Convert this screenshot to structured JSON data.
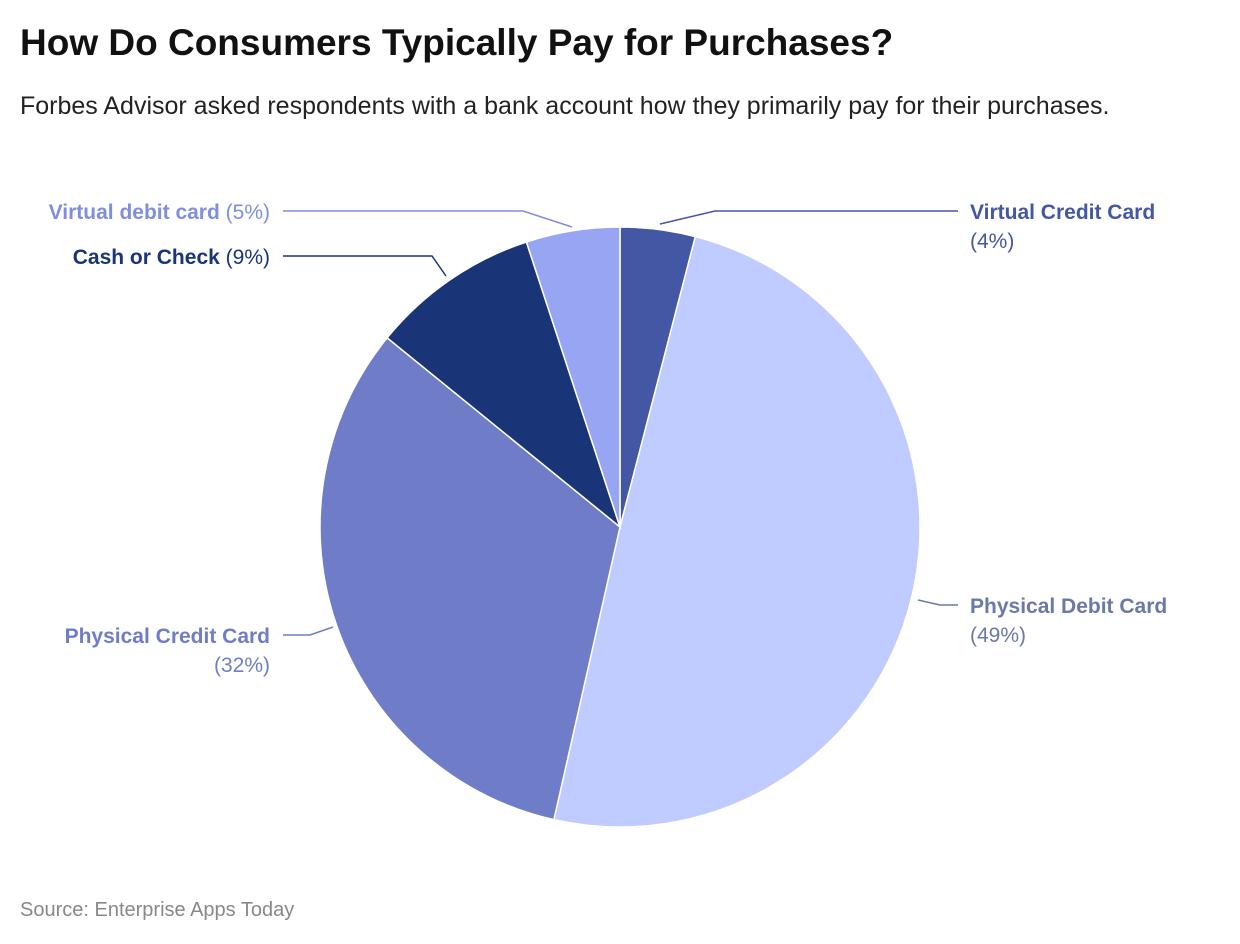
{
  "chart_data": {
    "type": "pie",
    "title": "How Do Consumers Typically Pay for Purchases?",
    "subtitle": "Forbes Advisor asked respondents with a bank account how they primarily pay for their purchases.",
    "source": "Source: Enterprise Apps Today",
    "start": "top",
    "direction": "clockwise",
    "slices": [
      {
        "label": "Virtual Credit Card",
        "value": 4,
        "value_label": "(4%)",
        "color": "#4457a5",
        "label_color": "#4457a5"
      },
      {
        "label": "Physical Debit Card",
        "value": 49,
        "value_label": "(49%)",
        "color": "#c0cbff",
        "label_color": "#6b78a8"
      },
      {
        "label": "Physical Credit Card",
        "value": 32,
        "value_label": "(32%)",
        "color": "#6f7dc8",
        "label_color": "#6f7dc8"
      },
      {
        "label": "Cash or Check",
        "value": 9,
        "value_label": "(9%)",
        "color": "#1a3478",
        "label_color": "#1a3478"
      },
      {
        "label": "Virtual debit card",
        "value": 5,
        "value_label": "(5%)",
        "color": "#98a5f2",
        "label_color": "#7f8ee0"
      }
    ]
  }
}
